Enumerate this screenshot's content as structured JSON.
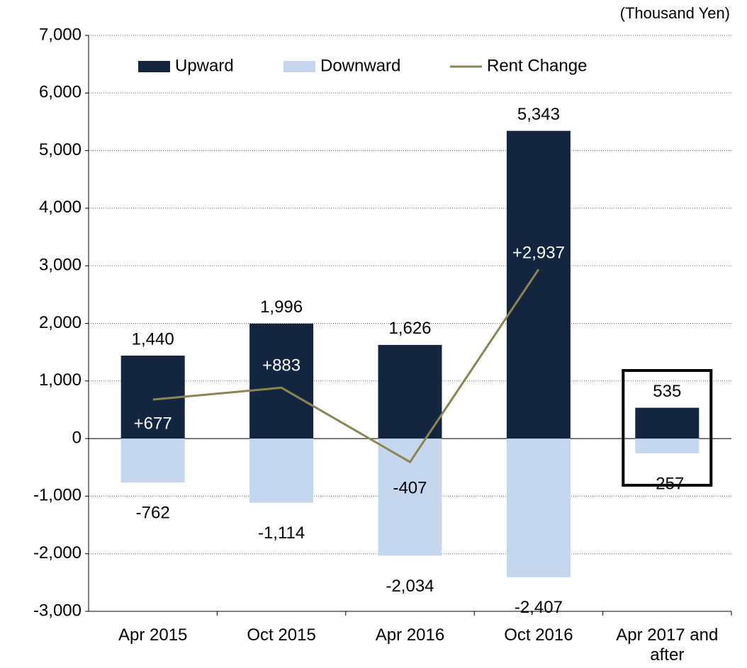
{
  "chart_data": {
    "type": "bar",
    "unit_label": "(Thousand Yen)",
    "categories": [
      "Apr 2015",
      "Oct 2015",
      "Apr 2016",
      "Oct 2016",
      "Apr 2017 and after"
    ],
    "series": [
      {
        "name": "Upward",
        "type": "bar",
        "color": "#13253f",
        "values": [
          1440,
          1996,
          1626,
          5343,
          535
        ],
        "value_labels": [
          "1,440",
          "1,996",
          "1,626",
          "5,343",
          "535"
        ]
      },
      {
        "name": "Downward",
        "type": "bar",
        "color": "#c5d7ef",
        "values": [
          -762,
          -1114,
          -2034,
          -2407,
          -257
        ],
        "value_labels": [
          "-762",
          "-1,114",
          "-2,034",
          "-2,407",
          "-257"
        ]
      },
      {
        "name": "Rent Change",
        "type": "line",
        "color": "#8b8554",
        "values": [
          677,
          883,
          -407,
          2937,
          null
        ],
        "value_labels": [
          "+677",
          "+883",
          "-407",
          "+2,937",
          null
        ]
      }
    ],
    "ylim": [
      -3000,
      7000
    ],
    "yticks": [
      {
        "value": -3000,
        "label": "-3,000"
      },
      {
        "value": -2000,
        "label": "-2,000"
      },
      {
        "value": -1000,
        "label": "-1,000"
      },
      0,
      {
        "value": 1000,
        "label": "1,000"
      },
      {
        "value": 2000,
        "label": "2,000"
      },
      {
        "value": 3000,
        "label": "3,000"
      },
      {
        "value": 4000,
        "label": "4,000"
      },
      {
        "value": 5000,
        "label": "5,000"
      },
      {
        "value": 6000,
        "label": "6,000"
      },
      {
        "value": 7000,
        "label": "7,000"
      }
    ],
    "grid": true,
    "legend": "top"
  }
}
